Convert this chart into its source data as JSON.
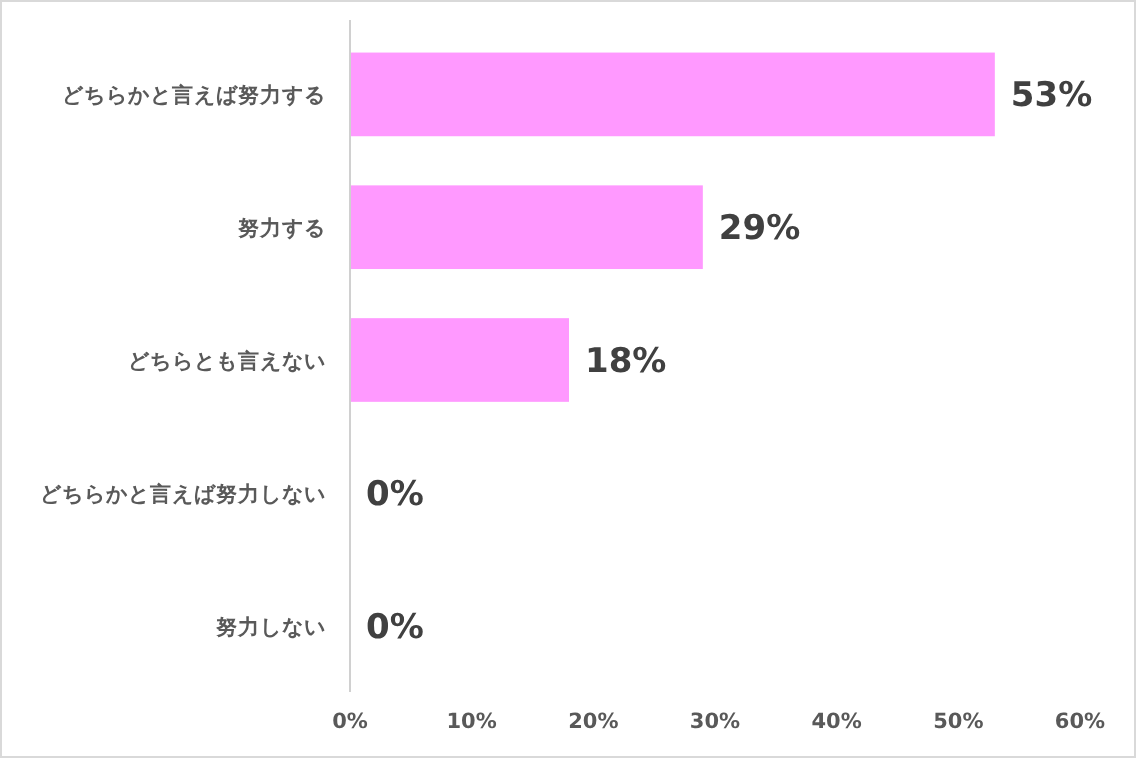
{
  "chart_data": {
    "type": "bar",
    "orientation": "horizontal",
    "categories": [
      "どちらかと言えば努力する",
      "努力する",
      "どちらとも言えない",
      "どちらかと言えば努力しない",
      "努力しない"
    ],
    "values": [
      53,
      29,
      18,
      0,
      0
    ],
    "value_labels": [
      "53%",
      "29%",
      "18%",
      "0%",
      "0%"
    ],
    "color": "#ff99ff",
    "xlim": [
      0,
      60
    ],
    "xticks": [
      {
        "value": 0,
        "label": "0%"
      },
      {
        "value": 10,
        "label": "10%"
      },
      {
        "value": 20,
        "label": "20%"
      },
      {
        "value": 30,
        "label": "30%"
      },
      {
        "value": 40,
        "label": "40%"
      },
      {
        "value": 50,
        "label": "50%"
      },
      {
        "value": 60,
        "label": "60%"
      }
    ],
    "grid": false
  }
}
